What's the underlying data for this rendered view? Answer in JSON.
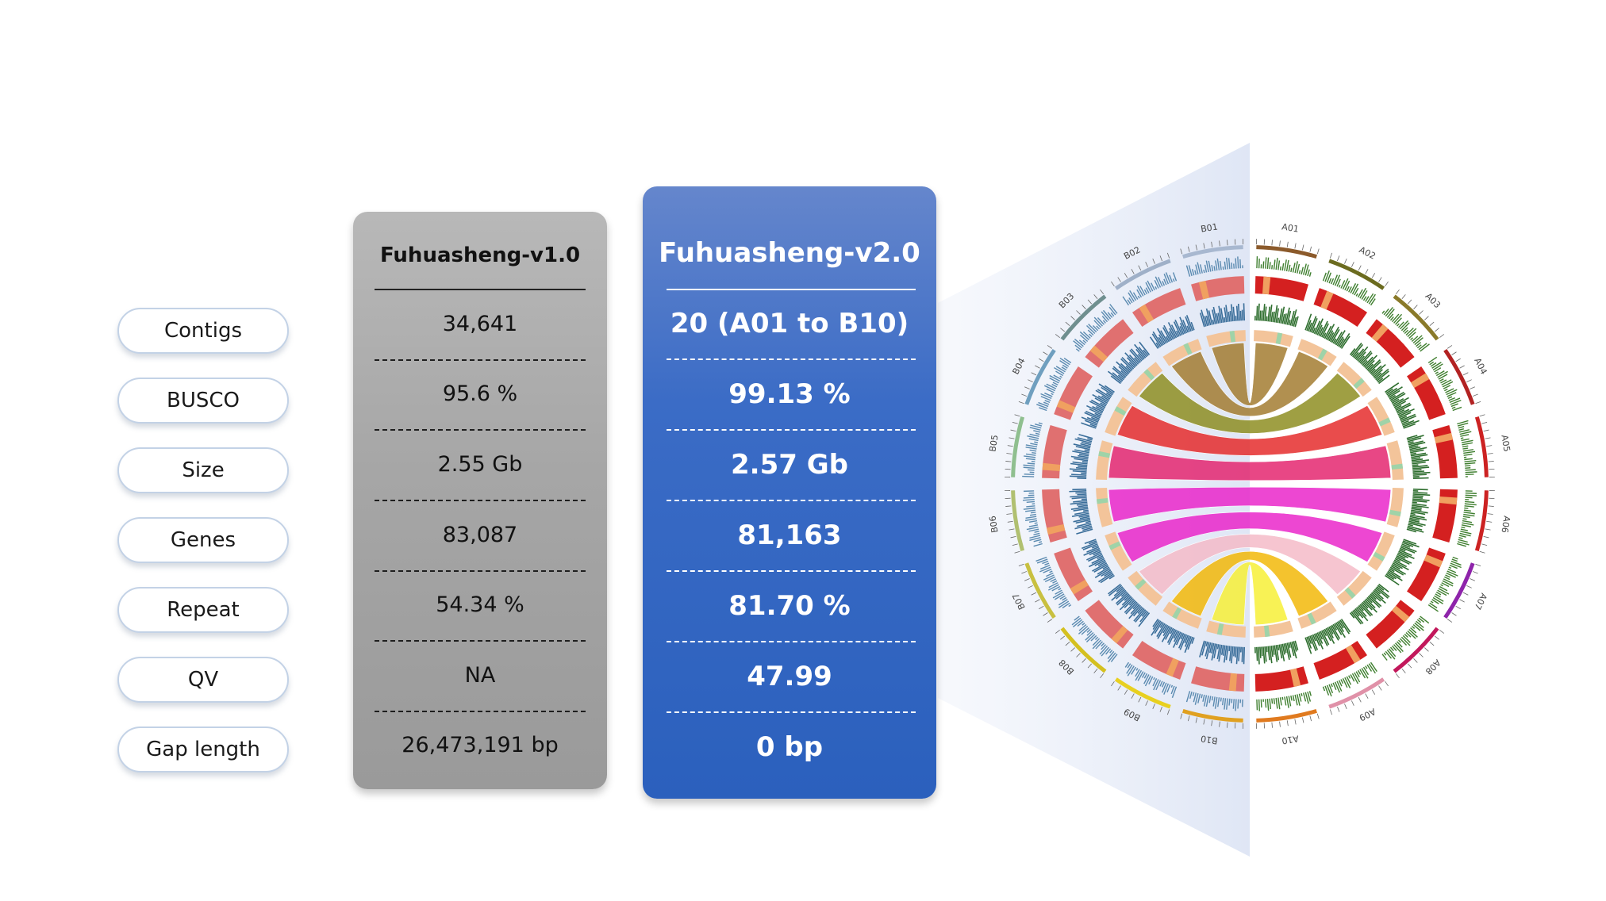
{
  "labels": [
    "Contigs",
    "BUSCO",
    "Size",
    "Genes",
    "Repeat",
    "QV",
    "Gap length"
  ],
  "v1": {
    "title": "Fuhuasheng-v1.0",
    "values": [
      "34,641",
      "95.6 %",
      "2.55 Gb",
      "83,087",
      "54.34 %",
      "NA",
      "26,473,191 bp"
    ]
  },
  "v2": {
    "title": "Fuhuasheng-v2.0",
    "values": [
      "20 (A01 to B10)",
      "99.13 %",
      "2.57 Gb",
      "81,163",
      "81.70 %",
      "47.99",
      "0 bp"
    ]
  },
  "circos": {
    "chromosomes": [
      "A01",
      "A02",
      "A03",
      "A04",
      "A05",
      "A06",
      "A07",
      "A08",
      "A09",
      "A10",
      "B10",
      "B09",
      "B08",
      "B07",
      "B06",
      "B05",
      "B04",
      "B03",
      "B02",
      "B01"
    ],
    "chrom_colors": [
      "#8b5a2b",
      "#6b6b1f",
      "#8a7a2a",
      "#b22222",
      "#cc2222",
      "#cc2222",
      "#8e24aa",
      "#c2185b",
      "#e091a8",
      "#e07a1f",
      "#e0a020",
      "#e8d020",
      "#d4c020",
      "#c8c040",
      "#b0c070",
      "#8fbf8f",
      "#6f9fbf",
      "#6f8f8f",
      "#9fb0c8",
      "#a8b8d0"
    ],
    "link_colors": [
      "#a0782a",
      "#8a8a1a",
      "#e42525",
      "#e31f6a",
      "#e91ec8",
      "#f4b8c6",
      "#f2b600",
      "#f7ef30"
    ]
  }
}
